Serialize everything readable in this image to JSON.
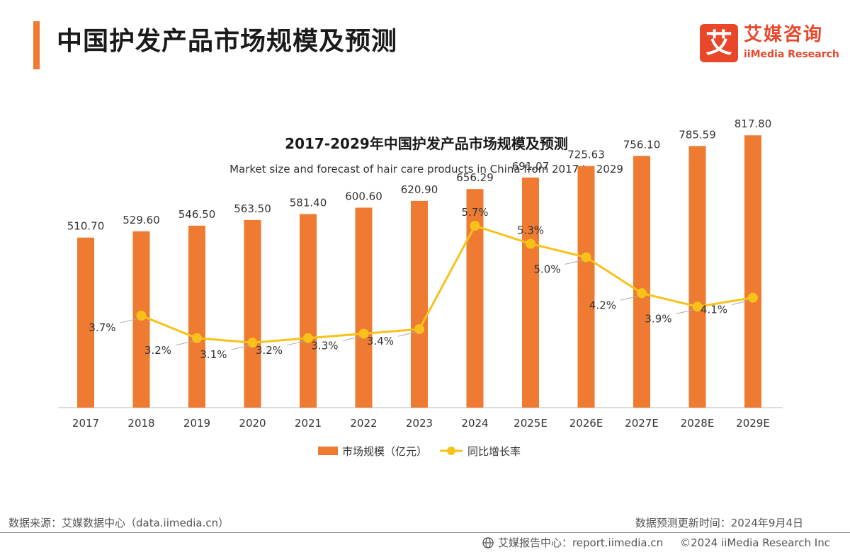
{
  "header": {
    "title": "中国护发产品市场规模及预测",
    "logo_mark": "艾",
    "logo_cn": "艾媒咨询",
    "logo_en": "iiMedia Research"
  },
  "chart_data": {
    "type": "bar",
    "title": "2017-2029年中国护发产品市场规模及预测",
    "subtitle": "Market size and forecast of hair care products in China from 2017 to 2029",
    "categories": [
      "2017",
      "2018",
      "2019",
      "2020",
      "2021",
      "2022",
      "2023",
      "2024",
      "2025E",
      "2026E",
      "2027E",
      "2028E",
      "2029E"
    ],
    "series": [
      {
        "name": "市场规模（亿元）",
        "type": "bar",
        "color": "#ee7b31",
        "values": [
          510.7,
          529.6,
          546.5,
          563.5,
          581.4,
          600.6,
          620.9,
          656.29,
          691.07,
          725.63,
          756.1,
          785.59,
          817.8
        ],
        "labels": [
          "510.70",
          "529.60",
          "546.50",
          "563.50",
          "581.40",
          "600.60",
          "620.90",
          "656.29",
          "691.07",
          "725.63",
          "756.10",
          "785.59",
          "817.80"
        ]
      },
      {
        "name": "同比增长率",
        "type": "line",
        "color": "#f8c21a",
        "values": [
          null,
          3.7,
          3.2,
          3.1,
          3.2,
          3.3,
          3.4,
          5.7,
          5.3,
          5.0,
          4.2,
          3.9,
          4.1
        ],
        "labels": [
          null,
          "3.7%",
          "3.2%",
          "3.1%",
          "3.2%",
          "3.3%",
          "3.4%",
          "5.7%",
          "5.3%",
          "5.0%",
          "4.2%",
          "3.9%",
          "4.1%"
        ]
      }
    ],
    "legend_position": "bottom",
    "grid": false
  },
  "footer": {
    "source": "数据来源：艾媒数据中心（data.iimedia.cn）",
    "update": "数据预测更新时间：2024年9月4日",
    "report": "艾媒报告中心：report.iimedia.cn",
    "copyright": "©2024  iiMedia Research Inc"
  }
}
